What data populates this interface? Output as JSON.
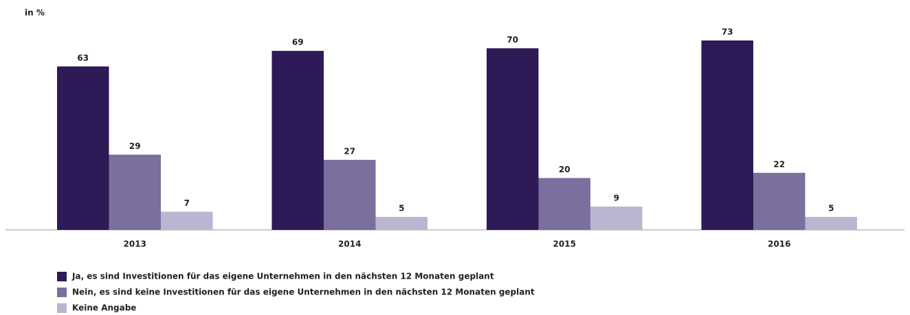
{
  "chart_data": {
    "type": "bar",
    "y_label": "in %",
    "categories": [
      "2013",
      "2014",
      "2015",
      "2016"
    ],
    "series": [
      {
        "name": "Ja, es sind Investitionen für das eigene Unternehmen in den nächsten 12 Monaten geplant",
        "color": "#2e1a57",
        "values": [
          63,
          69,
          70,
          73
        ]
      },
      {
        "name": "Nein, es sind keine Investitionen für das eigene Unternehmen in den nächsten 12 Monaten geplant",
        "color": "#7b6f9e",
        "values": [
          29,
          27,
          20,
          22
        ]
      },
      {
        "name": "Keine Angabe",
        "color": "#bbb5d1",
        "values": [
          7,
          5,
          9,
          5
        ]
      }
    ]
  }
}
